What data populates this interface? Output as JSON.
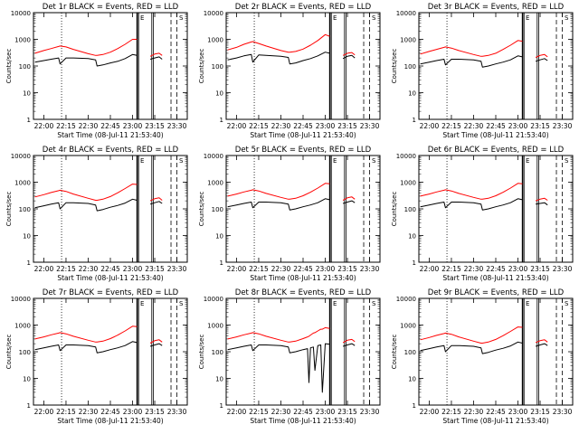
{
  "figure": {
    "xlabel": "Start Time (08-Jul-11 21:53:40)",
    "ylabel": "Counts/sec",
    "yticks": [
      1,
      10,
      100,
      1000,
      10000
    ],
    "ytick_labels": [
      "1",
      "10",
      "100",
      "1000",
      "10000"
    ],
    "xticks": [
      "22:00",
      "22:15",
      "22:30",
      "22:45",
      "23:00",
      "23:15",
      "23:30"
    ],
    "corner_marks": [
      "E",
      "S"
    ]
  },
  "chart_data": [
    {
      "type": "line",
      "title": "Det 1r BLACK = Events, RED = LLD",
      "xlabel": "Start Time (08-Jul-11 21:53:40)",
      "ylabel": "Counts/sec",
      "ylim": [
        1,
        10000
      ],
      "yscale": "log",
      "x": [
        "21:54",
        "22:00",
        "22:05",
        "22:10",
        "22:11",
        "22:15",
        "22:20",
        "22:30",
        "22:35",
        "22:36",
        "22:40",
        "22:45",
        "22:50",
        "22:55",
        "23:00",
        "23:03",
        "23:04",
        "23:12",
        "23:15",
        "23:18",
        "23:20"
      ],
      "series": [
        {
          "name": "LLD",
          "color": "#ff0000",
          "values": [
            300,
            380,
            450,
            540,
            560,
            520,
            420,
            290,
            250,
            250,
            270,
            330,
            450,
            650,
            1000,
            1000,
            null,
            230,
            280,
            300,
            250
          ]
        },
        {
          "name": "Events",
          "color": "#000000",
          "values": [
            140,
            160,
            180,
            200,
            120,
            200,
            200,
            190,
            170,
            100,
            110,
            130,
            150,
            190,
            270,
            250,
            null,
            180,
            200,
            220,
            180
          ]
        }
      ]
    },
    {
      "type": "line",
      "title": "Det 2r BLACK = Events, RED = LLD",
      "xlabel": "Start Time (08-Jul-11 21:53:40)",
      "ylabel": "Counts/sec",
      "ylim": [
        1,
        10000
      ],
      "yscale": "log",
      "x": [
        "21:54",
        "22:00",
        "22:05",
        "22:10",
        "22:11",
        "22:15",
        "22:20",
        "22:30",
        "22:35",
        "22:36",
        "22:40",
        "22:45",
        "22:50",
        "22:55",
        "23:00",
        "23:03",
        "23:04",
        "23:12",
        "23:15",
        "23:18",
        "23:20"
      ],
      "series": [
        {
          "name": "LLD",
          "color": "#ff0000",
          "values": [
            400,
            500,
            650,
            800,
            820,
            700,
            560,
            380,
            330,
            330,
            350,
            430,
            600,
            900,
            1500,
            1300,
            null,
            250,
            300,
            320,
            260
          ]
        },
        {
          "name": "Events",
          "color": "#000000",
          "values": [
            170,
            200,
            240,
            270,
            140,
            260,
            250,
            230,
            210,
            120,
            130,
            160,
            190,
            240,
            330,
            300,
            null,
            190,
            230,
            250,
            200
          ]
        }
      ]
    },
    {
      "type": "line",
      "title": "Det 3r BLACK = Events, RED = LLD",
      "xlabel": "Start Time (08-Jul-11 21:53:40)",
      "ylabel": "Counts/sec",
      "ylim": [
        1,
        10000
      ],
      "yscale": "log",
      "x": [
        "21:54",
        "22:00",
        "22:05",
        "22:10",
        "22:11",
        "22:15",
        "22:20",
        "22:30",
        "22:35",
        "22:36",
        "22:40",
        "22:45",
        "22:50",
        "22:55",
        "23:00",
        "23:03",
        "23:04",
        "23:12",
        "23:15",
        "23:18",
        "23:20"
      ],
      "series": [
        {
          "name": "LLD",
          "color": "#ff0000",
          "values": [
            280,
            350,
            420,
            500,
            520,
            470,
            380,
            270,
            230,
            230,
            250,
            300,
            420,
            600,
            900,
            850,
            null,
            210,
            250,
            270,
            220
          ]
        },
        {
          "name": "Events",
          "color": "#000000",
          "values": [
            120,
            140,
            160,
            180,
            110,
            180,
            180,
            170,
            150,
            90,
            100,
            120,
            140,
            170,
            240,
            220,
            null,
            150,
            170,
            190,
            160
          ]
        }
      ]
    },
    {
      "type": "line",
      "title": "Det 4r BLACK = Events, RED = LLD",
      "xlabel": "Start Time (08-Jul-11 21:53:40)",
      "ylabel": "Counts/sec",
      "ylim": [
        1,
        10000
      ],
      "yscale": "log",
      "x": [
        "21:54",
        "22:00",
        "22:05",
        "22:10",
        "22:11",
        "22:15",
        "22:20",
        "22:30",
        "22:35",
        "22:36",
        "22:40",
        "22:45",
        "22:50",
        "22:55",
        "23:00",
        "23:03",
        "23:04",
        "23:12",
        "23:15",
        "23:18",
        "23:20"
      ],
      "series": [
        {
          "name": "LLD",
          "color": "#ff0000",
          "values": [
            280,
            340,
            410,
            480,
            500,
            450,
            360,
            250,
            210,
            210,
            230,
            290,
            400,
            580,
            850,
            820,
            null,
            200,
            240,
            260,
            210
          ]
        },
        {
          "name": "Events",
          "color": "#000000",
          "values": [
            110,
            130,
            150,
            170,
            100,
            170,
            170,
            160,
            140,
            85,
            95,
            115,
            135,
            165,
            230,
            210,
            null,
            150,
            170,
            190,
            160
          ]
        }
      ]
    },
    {
      "type": "line",
      "title": "Det 5r BLACK = Events, RED = LLD",
      "xlabel": "Start Time (08-Jul-11 21:53:40)",
      "ylabel": "Counts/sec",
      "ylim": [
        1,
        10000
      ],
      "yscale": "log",
      "x": [
        "21:54",
        "22:00",
        "22:05",
        "22:10",
        "22:11",
        "22:15",
        "22:20",
        "22:30",
        "22:35",
        "22:36",
        "22:40",
        "22:45",
        "22:50",
        "22:55",
        "23:00",
        "23:03",
        "23:04",
        "23:12",
        "23:15",
        "23:18",
        "23:20"
      ],
      "series": [
        {
          "name": "LLD",
          "color": "#ff0000",
          "values": [
            300,
            360,
            430,
            500,
            520,
            470,
            380,
            270,
            230,
            230,
            250,
            310,
            420,
            600,
            900,
            870,
            null,
            210,
            260,
            280,
            230
          ]
        },
        {
          "name": "Events",
          "color": "#000000",
          "values": [
            120,
            140,
            160,
            180,
            110,
            180,
            180,
            170,
            150,
            90,
            100,
            120,
            140,
            170,
            240,
            220,
            null,
            160,
            180,
            200,
            170
          ]
        }
      ]
    },
    {
      "type": "line",
      "title": "Det 6r BLACK = Events, RED = LLD",
      "xlabel": "Start Time (08-Jul-11 21:53:40)",
      "ylabel": "Counts/sec",
      "ylim": [
        1,
        10000
      ],
      "yscale": "log",
      "x": [
        "21:54",
        "22:00",
        "22:05",
        "22:10",
        "22:11",
        "22:15",
        "22:20",
        "22:30",
        "22:35",
        "22:36",
        "22:40",
        "22:45",
        "22:50",
        "22:55",
        "23:00",
        "23:03",
        "23:04",
        "23:12",
        "23:15",
        "23:18",
        "23:20"
      ],
      "series": [
        {
          "name": "LLD",
          "color": "#ff0000",
          "values": [
            300,
            360,
            430,
            500,
            520,
            470,
            380,
            270,
            230,
            230,
            250,
            310,
            420,
            600,
            900,
            870,
            null,
            200,
            230,
            250,
            210
          ]
        },
        {
          "name": "Events",
          "color": "#000000",
          "values": [
            120,
            140,
            160,
            180,
            110,
            180,
            180,
            170,
            150,
            90,
            100,
            120,
            140,
            170,
            240,
            220,
            null,
            150,
            160,
            170,
            140
          ]
        }
      ]
    },
    {
      "type": "line",
      "title": "Det 7r BLACK = Events, RED = LLD",
      "xlabel": "Start Time (08-Jul-11 21:53:40)",
      "ylabel": "Counts/sec",
      "ylim": [
        1,
        10000
      ],
      "yscale": "log",
      "x": [
        "21:54",
        "22:00",
        "22:05",
        "22:10",
        "22:11",
        "22:15",
        "22:20",
        "22:30",
        "22:35",
        "22:36",
        "22:40",
        "22:45",
        "22:50",
        "22:55",
        "23:00",
        "23:03",
        "23:04",
        "23:12",
        "23:15",
        "23:18",
        "23:20"
      ],
      "series": [
        {
          "name": "LLD",
          "color": "#ff0000",
          "values": [
            300,
            360,
            430,
            500,
            520,
            470,
            380,
            270,
            230,
            230,
            250,
            310,
            420,
            600,
            900,
            870,
            null,
            210,
            260,
            280,
            230
          ]
        },
        {
          "name": "Events",
          "color": "#000000",
          "values": [
            120,
            140,
            160,
            180,
            110,
            180,
            180,
            170,
            150,
            90,
            100,
            120,
            140,
            170,
            240,
            220,
            null,
            160,
            180,
            200,
            170
          ]
        }
      ]
    },
    {
      "type": "line",
      "title": "Det 8r BLACK = Events, RED = LLD",
      "xlabel": "Start Time (08-Jul-11 21:53:40)",
      "ylabel": "Counts/sec",
      "ylim": [
        1,
        10000
      ],
      "yscale": "log",
      "x": [
        "21:54",
        "22:00",
        "22:05",
        "22:10",
        "22:11",
        "22:15",
        "22:20",
        "22:30",
        "22:35",
        "22:36",
        "22:40",
        "22:45",
        "22:48",
        "22:49",
        "22:50",
        "22:52",
        "22:53",
        "22:55",
        "22:57",
        "22:58",
        "23:00",
        "23:03",
        "23:04",
        "23:12",
        "23:15",
        "23:18",
        "23:20"
      ],
      "series": [
        {
          "name": "LLD",
          "color": "#ff0000",
          "values": [
            300,
            360,
            430,
            500,
            520,
            470,
            380,
            270,
            230,
            230,
            250,
            310,
            360,
            380,
            420,
            500,
            520,
            600,
            700,
            700,
            800,
            750,
            null,
            220,
            270,
            290,
            240
          ]
        },
        {
          "name": "Events",
          "color": "#000000",
          "values": [
            120,
            140,
            160,
            180,
            110,
            180,
            180,
            170,
            150,
            90,
            100,
            120,
            130,
            7,
            140,
            150,
            20,
            170,
            180,
            3,
            200,
            190,
            null,
            160,
            180,
            200,
            170
          ]
        }
      ]
    },
    {
      "type": "line",
      "title": "Det 9r BLACK = Events, RED = LLD",
      "xlabel": "Start Time (08-Jul-11 21:53:40)",
      "ylabel": "Counts/sec",
      "ylim": [
        1,
        10000
      ],
      "yscale": "log",
      "x": [
        "21:54",
        "22:00",
        "22:05",
        "22:10",
        "22:11",
        "22:15",
        "22:20",
        "22:30",
        "22:35",
        "22:36",
        "22:40",
        "22:45",
        "22:50",
        "22:55",
        "23:00",
        "23:03",
        "23:04",
        "23:12",
        "23:15",
        "23:18",
        "23:20"
      ],
      "series": [
        {
          "name": "LLD",
          "color": "#ff0000",
          "values": [
            280,
            340,
            410,
            480,
            500,
            450,
            360,
            250,
            210,
            210,
            230,
            290,
            400,
            580,
            850,
            820,
            null,
            220,
            260,
            280,
            230
          ]
        },
        {
          "name": "Events",
          "color": "#000000",
          "values": [
            110,
            130,
            150,
            170,
            100,
            170,
            170,
            160,
            140,
            85,
            95,
            115,
            135,
            165,
            230,
            210,
            null,
            160,
            180,
            200,
            170
          ]
        }
      ]
    }
  ]
}
